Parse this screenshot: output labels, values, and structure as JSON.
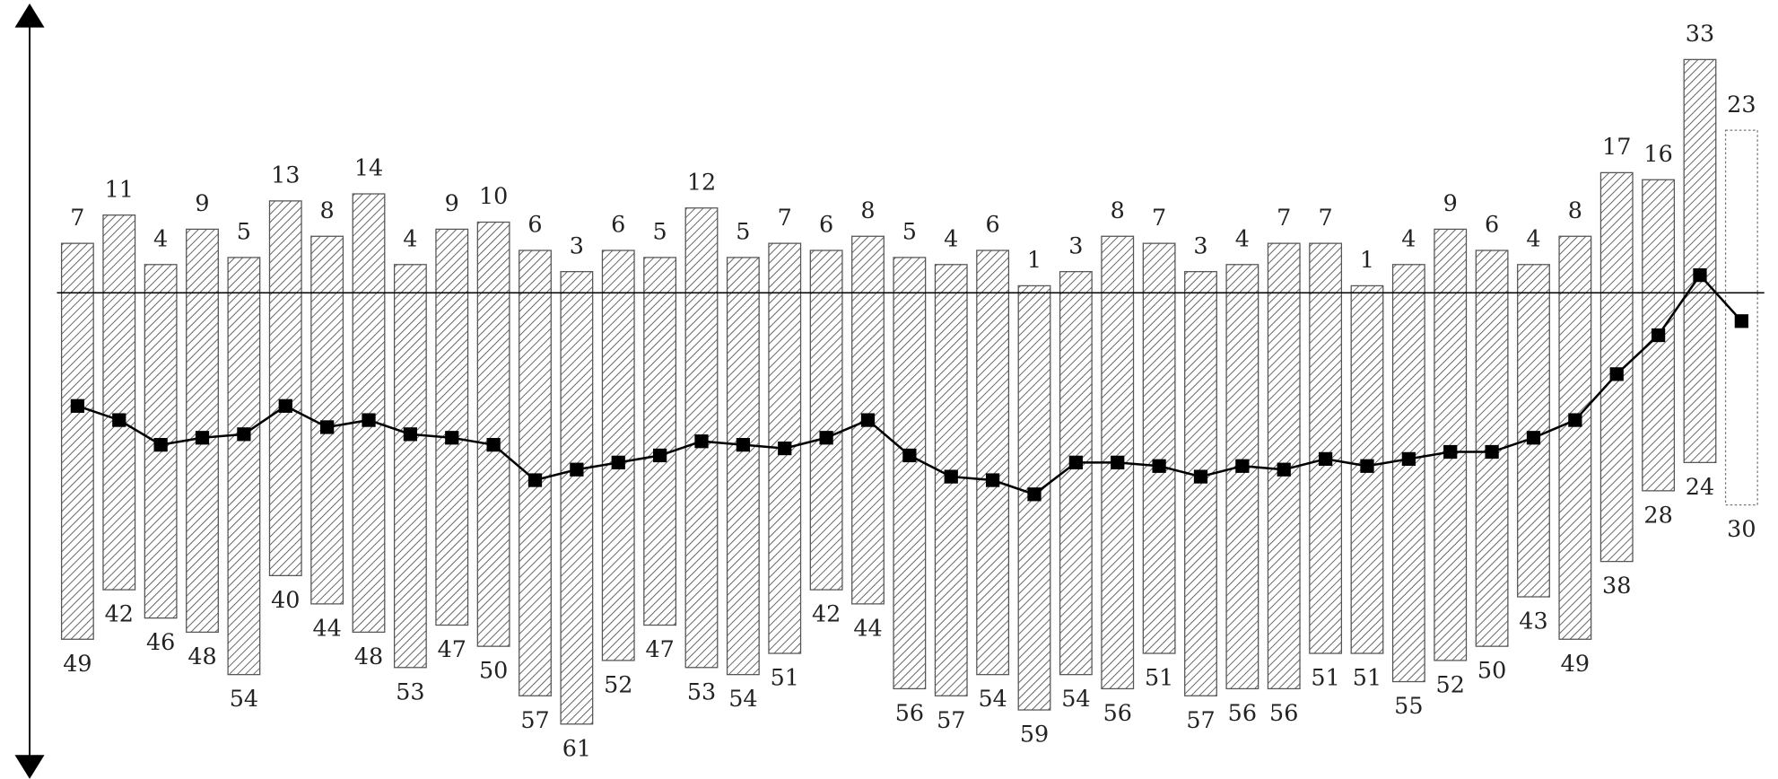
{
  "chart_data": {
    "type": "bar",
    "categories": [
      null,
      null,
      null,
      null,
      null,
      null,
      null,
      null,
      null,
      null,
      null,
      null,
      null,
      null,
      null,
      null,
      null,
      null,
      null,
      null,
      null,
      null,
      null,
      null,
      null,
      null,
      null,
      null,
      null,
      null,
      null,
      null,
      null,
      null,
      null,
      null,
      null,
      null,
      null,
      null,
      null
    ],
    "ylim": [
      -69.4,
      40.6
    ],
    "series": [
      {
        "color": "#555555",
        "values": [
          7,
          11,
          4,
          9,
          5,
          13,
          8,
          14,
          4,
          9,
          10,
          6,
          3,
          6,
          5,
          12,
          5,
          7,
          6,
          8,
          5,
          4,
          6,
          1,
          3,
          8,
          7,
          3,
          4,
          7,
          7,
          1,
          4,
          9,
          6,
          4,
          8,
          17,
          16,
          33,
          23
        ]
      },
      {
        "color": "#555555",
        "values": [
          -49,
          -42,
          -46,
          -48,
          -54,
          -40,
          -44,
          -48,
          -53,
          -47,
          -50,
          -57,
          -61,
          -52,
          -47,
          -53,
          -54,
          -51,
          -42,
          -44,
          -56,
          -57,
          -54,
          -59,
          -54,
          -56,
          -51,
          -57,
          -56,
          -56,
          -51,
          -51,
          -55,
          -52,
          -50,
          -43,
          -49,
          -38,
          -28,
          -24,
          -30
        ],
        "value_labels": [
          "49",
          "42",
          "46",
          "48",
          "54",
          "40",
          "44",
          "48",
          "53",
          "47",
          "50",
          "57",
          "61",
          "52",
          "47",
          "53",
          "54",
          "51",
          "42",
          "44",
          "56",
          "57",
          "54",
          "59",
          "54",
          "56",
          "51",
          "57",
          "56",
          "56",
          "51",
          "51",
          "55",
          "52",
          "50",
          "43",
          "49",
          "38",
          "28",
          "24",
          "30"
        ]
      },
      {
        "type": "line",
        "color": "#000000",
        "values": [
          -16,
          -18,
          -21.5,
          -20.5,
          -20,
          -16,
          -19,
          -18,
          -20,
          -20.5,
          -21.5,
          -26.5,
          -25,
          -24,
          -23,
          -21,
          -21.5,
          -22,
          -20.5,
          -18,
          -23,
          -26,
          -26.5,
          -28.5,
          -24,
          -24,
          -24.5,
          -26,
          -24.5,
          -25,
          -23.5,
          -24.5,
          -23.5,
          -22.5,
          -22.5,
          -20.5,
          -18,
          -11.5,
          -6,
          2.5,
          -4
        ]
      }
    ]
  }
}
